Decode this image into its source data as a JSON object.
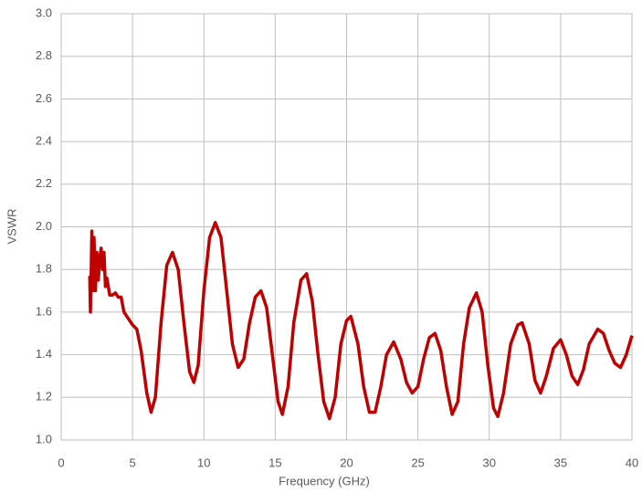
{
  "chart_data": {
    "type": "line",
    "x_label": "Frequency (GHz)",
    "y_label": "VSWR",
    "xlim": [
      0,
      40
    ],
    "xticks": [
      0,
      5,
      10,
      15,
      20,
      25,
      30,
      35,
      40
    ],
    "ylim": [
      1.0,
      3.0
    ],
    "yticks": [
      {
        "value": 1.0,
        "label": "1.0"
      },
      1.2,
      1.4,
      1.6,
      1.8,
      {
        "value": 2.0,
        "label": "2.0"
      },
      2.2,
      2.4,
      2.6,
      2.8,
      {
        "value": 3.0,
        "label": "3.0"
      }
    ],
    "grid": true,
    "series": [
      {
        "color": "#c00000",
        "x": [
          2.0,
          2.05,
          2.1,
          2.15,
          2.2,
          2.3,
          2.4,
          2.5,
          2.6,
          2.7,
          2.8,
          2.9,
          3.0,
          3.1,
          3.2,
          3.4,
          3.6,
          3.8,
          4.0,
          4.2,
          4.4,
          4.6,
          5.0,
          5.3,
          5.6,
          6.0,
          6.3,
          6.6,
          7.0,
          7.4,
          7.8,
          8.2,
          8.6,
          9.0,
          9.3,
          9.6,
          10.0,
          10.4,
          10.8,
          11.2,
          11.6,
          12.0,
          12.4,
          12.8,
          13.2,
          13.6,
          14.0,
          14.4,
          14.8,
          15.2,
          15.5,
          15.9,
          16.3,
          16.8,
          17.2,
          17.6,
          18.0,
          18.4,
          18.8,
          19.2,
          19.6,
          20.0,
          20.3,
          20.8,
          21.2,
          21.6,
          22.0,
          22.4,
          22.8,
          23.3,
          23.8,
          24.2,
          24.6,
          25.0,
          25.4,
          25.8,
          26.2,
          26.6,
          27.0,
          27.4,
          27.8,
          28.2,
          28.6,
          29.1,
          29.5,
          29.9,
          30.3,
          30.6,
          31.0,
          31.5,
          32.0,
          32.3,
          32.8,
          33.2,
          33.6,
          34.0,
          34.5,
          35.0,
          35.4,
          35.8,
          36.2,
          36.6,
          37.0,
          37.6,
          38.0,
          38.4,
          38.8,
          39.2,
          39.6,
          40.0
        ],
        "values": [
          1.77,
          1.6,
          1.78,
          1.98,
          1.7,
          1.95,
          1.7,
          1.88,
          1.75,
          1.85,
          1.9,
          1.8,
          1.88,
          1.72,
          1.76,
          1.68,
          1.68,
          1.69,
          1.67,
          1.67,
          1.6,
          1.58,
          1.54,
          1.52,
          1.42,
          1.22,
          1.13,
          1.2,
          1.55,
          1.82,
          1.88,
          1.8,
          1.55,
          1.32,
          1.27,
          1.35,
          1.7,
          1.95,
          2.02,
          1.95,
          1.7,
          1.45,
          1.34,
          1.38,
          1.55,
          1.67,
          1.7,
          1.62,
          1.4,
          1.18,
          1.12,
          1.25,
          1.55,
          1.75,
          1.78,
          1.65,
          1.4,
          1.18,
          1.1,
          1.2,
          1.45,
          1.56,
          1.58,
          1.45,
          1.25,
          1.13,
          1.13,
          1.25,
          1.4,
          1.46,
          1.38,
          1.27,
          1.22,
          1.25,
          1.38,
          1.48,
          1.5,
          1.42,
          1.25,
          1.12,
          1.18,
          1.45,
          1.62,
          1.69,
          1.6,
          1.35,
          1.15,
          1.11,
          1.22,
          1.45,
          1.54,
          1.55,
          1.45,
          1.28,
          1.22,
          1.3,
          1.43,
          1.47,
          1.4,
          1.3,
          1.26,
          1.33,
          1.45,
          1.52,
          1.5,
          1.42,
          1.36,
          1.34,
          1.4,
          1.49
        ]
      }
    ]
  }
}
